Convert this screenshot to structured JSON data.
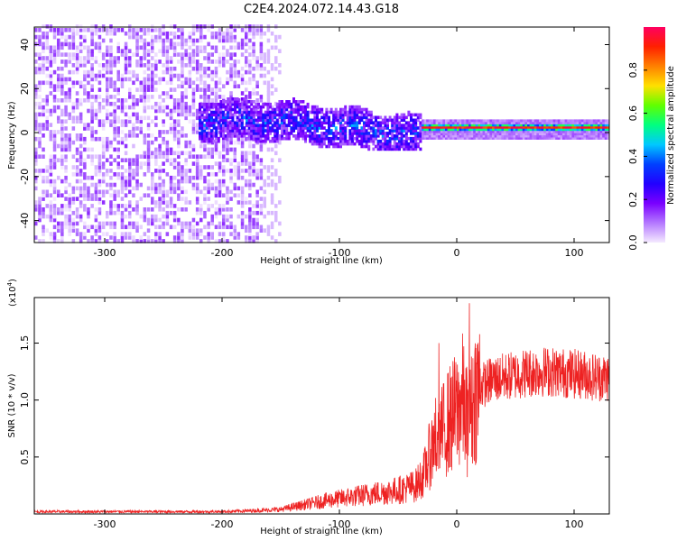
{
  "title": "C2E4.2024.072.14.43.G18",
  "chart_data": [
    {
      "type": "heatmap",
      "xlabel": "Height of straight line (km)",
      "ylabel": "Frequency (Hz)",
      "xlim": [
        -360,
        130
      ],
      "ylim": [
        -50,
        48
      ],
      "xticks": [
        -300,
        -200,
        -100,
        0,
        100
      ],
      "yticks": [
        -40,
        -20,
        0,
        20,
        40
      ],
      "colorbar": {
        "label": "Normalized spectral amplitude",
        "range": [
          0,
          1
        ],
        "ticks": [
          "0.0",
          "0.2",
          "0.4",
          "0.6",
          "0.8"
        ],
        "colors": [
          "#f5eaff",
          "#b478ff",
          "#7a00ff",
          "#2200ff",
          "#0040ff",
          "#00c8ff",
          "#00ff80",
          "#60ff00",
          "#ffe000",
          "#ff8000",
          "#ff2000",
          "#ff0060"
        ]
      },
      "regions": [
        {
          "description": "broadband noise",
          "x_range": [
            -360,
            -165
          ],
          "freq_range": [
            -50,
            48
          ],
          "amplitude": [
            0.0,
            0.15
          ]
        },
        {
          "description": "fading noise",
          "x_range": [
            -165,
            -150
          ],
          "freq_range": [
            -50,
            48
          ],
          "amplitude": [
            0.0,
            0.05
          ]
        },
        {
          "description": "scattered signal band",
          "x_range": [
            -220,
            -30
          ],
          "freq_range": [
            -8,
            15
          ],
          "amplitude": [
            0.1,
            0.45
          ]
        },
        {
          "description": "strong signal line",
          "x_range": [
            -30,
            130
          ],
          "freq_center": 2,
          "amplitude": [
            0.6,
            1.0
          ]
        }
      ]
    },
    {
      "type": "line",
      "xlabel": "Height of straight line (km)",
      "ylabel": "SNR (10 * v/v)",
      "y_multiplier": "(x10",
      "y_exponent": "4",
      "xlim": [
        -360,
        130
      ],
      "ylim": [
        0,
        1.9
      ],
      "xticks": [
        -300,
        -200,
        -100,
        0,
        100
      ],
      "yticks": [
        "0.5",
        "1.0",
        "1.5"
      ],
      "ytick_values": [
        0.5,
        1.0,
        1.5
      ],
      "color": "#ee2222",
      "series": [
        {
          "x": [
            -360,
            -300,
            -250,
            -200,
            -170,
            -150,
            -130,
            -110,
            -90,
            -70,
            -55,
            -45,
            -35,
            -28,
            -22,
            -18,
            -12,
            -8,
            -4,
            0,
            5,
            10,
            15,
            20,
            25,
            30,
            40,
            50,
            60,
            70,
            80,
            90,
            100,
            110,
            120,
            130
          ],
          "y": [
            0.02,
            0.02,
            0.02,
            0.02,
            0.03,
            0.04,
            0.08,
            0.12,
            0.15,
            0.18,
            0.2,
            0.22,
            0.25,
            0.35,
            0.55,
            0.65,
            0.72,
            0.8,
            0.85,
            0.9,
            1.0,
            0.75,
            1.05,
            1.12,
            1.15,
            1.18,
            1.2,
            1.22,
            1.24,
            1.25,
            1.25,
            1.24,
            1.23,
            1.22,
            1.2,
            1.2
          ]
        }
      ]
    }
  ]
}
